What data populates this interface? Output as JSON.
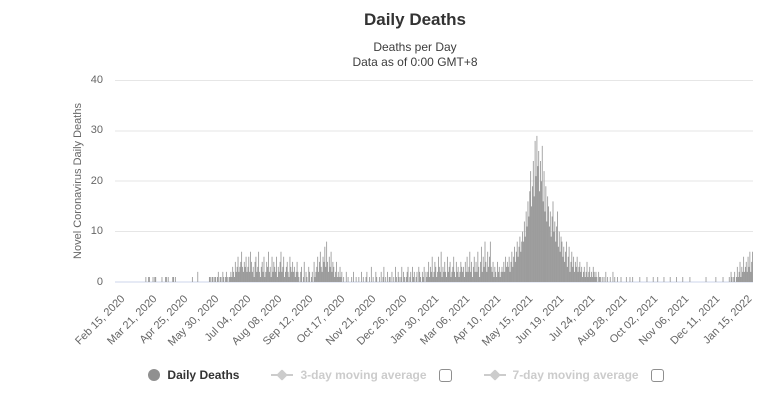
{
  "header": {
    "title": "Daily Deaths",
    "subtitle_line1": "Deaths per Day",
    "subtitle_line2": "Data as of 0:00 GMT+8"
  },
  "legend": {
    "items": [
      {
        "label": "Daily Deaths",
        "marker": "circle",
        "active": true,
        "has_checkbox": false
      },
      {
        "label": "3-day moving average",
        "marker": "diamond-line",
        "active": false,
        "has_checkbox": true,
        "checked": false
      },
      {
        "label": "7-day moving average",
        "marker": "diamond-line",
        "active": false,
        "has_checkbox": true,
        "checked": false
      }
    ]
  },
  "colors": {
    "bar": "#9c9c9c",
    "gridline": "#e6e6e6",
    "axis_line": "#ccd6eb",
    "axis_label": "#666666",
    "title": "#333333",
    "legend_active_text": "#333333",
    "legend_disabled_text": "#cccccc",
    "legend_active_marker": "#909090",
    "legend_disabled_marker": "#cccccc"
  },
  "chart_data": {
    "type": "bar",
    "title": "Daily Deaths",
    "subtitle": "Deaths per Day - Data as of 0:00 GMT+8",
    "series_name": "Daily Deaths",
    "xlabel": "",
    "ylabel": "Novel Coronavirus Daily Deaths",
    "ylim": [
      0,
      40
    ],
    "y_ticks": [
      0,
      10,
      20,
      30,
      40
    ],
    "grid": true,
    "legend_position": "bottom",
    "x_unit": "day",
    "x_start": "Feb 15, 2020",
    "x_tick_interval_days": 35,
    "x_tick_labels": [
      "Feb 15, 2020",
      "Mar 21, 2020",
      "Apr 25, 2020",
      "May 30, 2020",
      "Jul 04, 2020",
      "Aug 08, 2020",
      "Sep 12, 2020",
      "Oct 17, 2020",
      "Nov 21, 2020",
      "Dec 26, 2020",
      "Jan 30, 2021",
      "Mar 06, 2021",
      "Apr 10, 2021",
      "May 15, 2021",
      "Jun 19, 2021",
      "Jul 24, 2021",
      "Aug 28, 2021",
      "Oct 02, 2021",
      "Nov 06, 2021",
      "Dec 11, 2021",
      "Jan 15, 2022"
    ],
    "values": [
      0,
      0,
      0,
      0,
      0,
      0,
      0,
      0,
      0,
      0,
      0,
      0,
      0,
      0,
      0,
      0,
      0,
      0,
      0,
      0,
      0,
      0,
      0,
      0,
      0,
      0,
      0,
      0,
      0,
      0,
      0,
      0,
      0,
      0,
      1,
      0,
      0,
      1,
      1,
      0,
      0,
      0,
      1,
      0,
      1,
      1,
      0,
      0,
      0,
      0,
      0,
      0,
      1,
      0,
      0,
      0,
      1,
      1,
      0,
      1,
      0,
      0,
      0,
      0,
      1,
      1,
      0,
      1,
      0,
      0,
      0,
      0,
      0,
      0,
      0,
      0,
      0,
      0,
      0,
      0,
      0,
      0,
      0,
      0,
      0,
      0,
      1,
      0,
      0,
      0,
      0,
      0,
      2,
      0,
      0,
      0,
      0,
      0,
      0,
      0,
      0,
      0,
      0,
      0,
      0,
      1,
      1,
      0,
      1,
      1,
      0,
      1,
      1,
      0,
      1,
      2,
      0,
      1,
      1,
      0,
      2,
      1,
      0,
      1,
      2,
      1,
      0,
      1,
      1,
      2,
      1,
      3,
      2,
      1,
      4,
      2,
      3,
      5,
      2,
      3,
      4,
      6,
      3,
      2,
      4,
      3,
      5,
      2,
      3,
      5,
      2,
      6,
      4,
      2,
      3,
      1,
      4,
      5,
      2,
      3,
      6,
      2,
      1,
      3,
      4,
      2,
      5,
      1,
      2,
      4,
      3,
      6,
      2,
      3,
      1,
      5,
      2,
      4,
      3,
      2,
      5,
      1,
      3,
      2,
      4,
      6,
      2,
      3,
      5,
      1,
      2,
      3,
      4,
      2,
      1,
      5,
      3,
      2,
      4,
      2,
      3,
      1,
      2,
      4,
      2,
      1,
      0,
      2,
      3,
      0,
      1,
      4,
      0,
      2,
      1,
      0,
      3,
      2,
      0,
      1,
      2,
      0,
      4,
      1,
      2,
      3,
      5,
      2,
      4,
      6,
      3,
      2,
      5,
      4,
      7,
      3,
      8,
      4,
      2,
      5,
      3,
      6,
      2,
      4,
      3,
      1,
      2,
      4,
      1,
      2,
      1,
      3,
      1,
      2,
      0,
      1,
      0,
      0,
      2,
      0,
      1,
      0,
      0,
      0,
      1,
      0,
      2,
      0,
      0,
      1,
      0,
      0,
      1,
      0,
      0,
      2,
      0,
      1,
      0,
      0,
      1,
      2,
      0,
      0,
      1,
      0,
      3,
      0,
      1,
      0,
      0,
      2,
      1,
      0,
      0,
      1,
      0,
      2,
      0,
      1,
      3,
      0,
      1,
      0,
      2,
      0,
      1,
      1,
      0,
      2,
      0,
      1,
      0,
      3,
      1,
      0,
      2,
      1,
      0,
      1,
      3,
      0,
      2,
      1,
      0,
      1,
      2,
      3,
      0,
      1,
      2,
      0,
      3,
      1,
      2,
      0,
      1,
      2,
      0,
      3,
      2,
      1,
      0,
      2,
      1,
      3,
      0,
      2,
      1,
      2,
      4,
      1,
      3,
      2,
      5,
      1,
      2,
      4,
      3,
      1,
      2,
      5,
      3,
      2,
      6,
      1,
      3,
      2,
      4,
      2,
      1,
      5,
      2,
      3,
      4,
      1,
      2,
      3,
      5,
      2,
      1,
      4,
      2,
      3,
      1,
      2,
      4,
      3,
      2,
      3,
      1,
      4,
      2,
      5,
      2,
      3,
      6,
      2,
      4,
      1,
      3,
      5,
      2,
      4,
      2,
      6,
      3,
      1,
      4,
      7,
      2,
      5,
      3,
      8,
      4,
      2,
      6,
      3,
      5,
      8,
      3,
      2,
      4,
      1,
      3,
      2,
      1,
      4,
      2,
      3,
      1,
      2,
      3,
      2,
      4,
      2,
      5,
      3,
      4,
      3,
      5,
      2,
      4,
      6,
      3,
      5,
      7,
      4,
      6,
      8,
      5,
      7,
      9,
      6,
      8,
      10,
      8,
      12,
      9,
      14,
      11,
      16,
      13,
      18,
      22,
      15,
      19,
      24,
      17,
      28,
      21,
      29,
      23,
      26,
      18,
      24,
      20,
      27,
      16,
      22,
      14,
      19,
      12,
      17,
      15,
      11,
      14,
      9,
      13,
      16,
      10,
      12,
      8,
      11,
      14,
      7,
      10,
      6,
      9,
      8,
      5,
      7,
      4,
      6,
      8,
      3,
      5,
      7,
      2,
      4,
      6,
      3,
      5,
      2,
      4,
      3,
      5,
      2,
      3,
      4,
      2,
      3,
      1,
      2,
      3,
      1,
      2,
      4,
      1,
      2,
      3,
      1,
      2,
      1,
      3,
      2,
      1,
      2,
      1,
      0,
      2,
      1,
      1,
      0,
      1,
      0,
      1,
      0,
      2,
      0,
      1,
      0,
      0,
      1,
      0,
      0,
      2,
      0,
      1,
      0,
      0,
      1,
      0,
      0,
      0,
      1,
      0,
      0,
      0,
      0,
      0,
      1,
      0,
      0,
      0,
      1,
      0,
      0,
      1,
      0,
      0,
      0,
      0,
      0,
      0,
      0,
      1,
      0,
      0,
      0,
      0,
      0,
      0,
      0,
      1,
      0,
      0,
      0,
      0,
      0,
      0,
      1,
      0,
      0,
      0,
      0,
      1,
      0,
      0,
      0,
      0,
      0,
      0,
      1,
      0,
      0,
      0,
      0,
      0,
      0,
      1,
      0,
      0,
      0,
      0,
      0,
      0,
      1,
      0,
      0,
      0,
      0,
      0,
      0,
      1,
      0,
      0,
      0,
      0,
      0,
      0,
      0,
      1,
      0,
      0,
      0,
      0,
      0,
      0,
      0,
      0,
      0,
      0,
      0,
      0,
      0,
      0,
      0,
      0,
      0,
      1,
      0,
      0,
      0,
      0,
      0,
      0,
      0,
      0,
      0,
      0,
      1,
      0,
      0,
      0,
      0,
      0,
      0,
      0,
      1,
      0,
      0,
      0,
      0,
      0,
      0,
      1,
      0,
      2,
      1,
      0,
      1,
      2,
      0,
      1,
      3,
      1,
      2,
      4,
      1,
      3,
      2,
      5,
      2,
      3,
      4,
      2,
      5,
      3,
      6,
      2,
      4,
      6
    ]
  }
}
